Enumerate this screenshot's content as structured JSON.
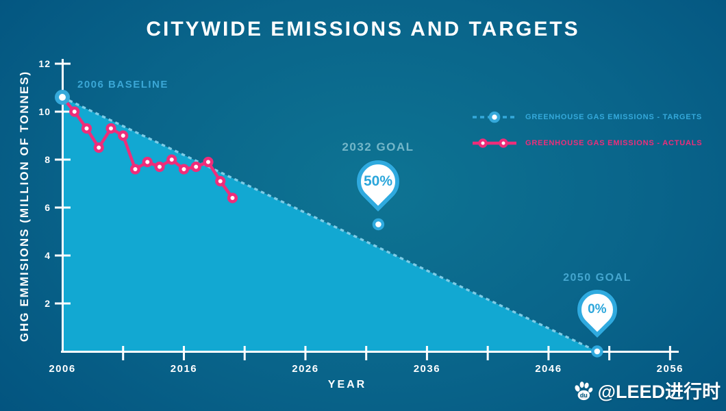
{
  "chart_data": {
    "type": "line",
    "title": "CITYWIDE EMISSIONS AND TARGETS",
    "xlabel": "YEAR",
    "ylabel": "GHG EMMISIONS (MILLION OF TONNES)",
    "xlim": [
      2006,
      2056
    ],
    "ylim": [
      0,
      12
    ],
    "grid": false,
    "legend_position": "top-right",
    "x_tick_labels": [
      "2006",
      "2016",
      "2026",
      "2036",
      "2046",
      "2056"
    ],
    "x_minor_tick_years": [
      2011,
      2016,
      2021,
      2026,
      2031,
      2036,
      2041,
      2046,
      2051,
      2056
    ],
    "y_ticks": [
      2,
      4,
      6,
      8,
      10,
      12
    ],
    "series": [
      {
        "name": "GREENHOUSE GAS EMISSIONS - TARGETS",
        "style": "dashed",
        "color": "#7ecce6",
        "x": [
          2006,
          2032,
          2050
        ],
        "y": [
          10.6,
          5.3,
          0
        ]
      },
      {
        "name": "GREENHOUSE GAS EMISSIONS - ACTUALS",
        "style": "solid",
        "color": "#ee2d7a",
        "x": [
          2006,
          2007,
          2008,
          2009,
          2010,
          2011,
          2012,
          2013,
          2014,
          2015,
          2016,
          2017,
          2018,
          2019,
          2020
        ],
        "y": [
          10.6,
          10.0,
          9.3,
          8.5,
          9.3,
          9.0,
          7.6,
          7.9,
          7.7,
          8.0,
          7.6,
          7.7,
          7.9,
          7.1,
          6.4
        ]
      }
    ],
    "annotations": [
      {
        "text": "2006 BASELINE",
        "x": 2006,
        "y": 10.6
      },
      {
        "label": "2032 GOAL",
        "value": "50%",
        "x": 2032,
        "y": 5.3
      },
      {
        "label": "2050 GOAL",
        "value": "0%",
        "x": 2050,
        "y": 0
      }
    ]
  },
  "colors": {
    "background_center": "#0e7493",
    "background_edge": "#014f7c",
    "area_fill": "#12a8d2",
    "targets_line": "#7ecce6",
    "targets_accent": "#35a9db",
    "actuals_line": "#ee2d7a",
    "axis": "#ffffff",
    "baseline_label": "#3ba7d6",
    "goal_2032_label": "#74b7c9",
    "goal_2050_label": "#45a6cf",
    "pin_border": "#2faadf",
    "pin_text": "#2ba6db"
  },
  "watermark": {
    "icon": "baidu-paw-icon",
    "text": "@LEED进行时"
  }
}
